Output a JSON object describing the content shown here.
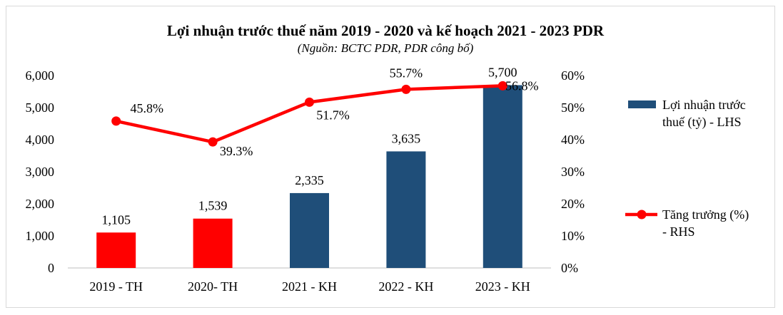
{
  "chart_data": {
    "type": "bar",
    "title": "Lợi nhuận trước thuế năm 2019 - 2020 và kế hoạch 2021 - 2023 PDR",
    "subtitle": "(Nguồn: BCTC PDR, PDR công bố)",
    "categories": [
      "2019 - TH",
      "2020- TH",
      "2021 - KH",
      "2022 - KH",
      "2023 - KH"
    ],
    "series": [
      {
        "name": "Lợi nhuận trước thuế (tỷ) - LHS",
        "type": "bar",
        "axis": "left",
        "values": [
          1105,
          1539,
          2335,
          3635,
          5700
        ],
        "value_labels": [
          "1,105",
          "1,539",
          "2,335",
          "3,635",
          "5,700"
        ],
        "bar_colors": [
          "#ff0000",
          "#ff0000",
          "#1f4e79",
          "#1f4e79",
          "#1f4e79"
        ]
      },
      {
        "name": "Tăng trưởng (%) - RHS",
        "type": "line",
        "axis": "right",
        "values": [
          45.8,
          39.3,
          51.7,
          55.7,
          56.8
        ],
        "value_labels": [
          "45.8%",
          "39.3%",
          "51.7%",
          "55.7%",
          "56.8%"
        ],
        "color": "#ff0000"
      }
    ],
    "left_axis": {
      "ylim": [
        0,
        6000
      ],
      "ticks": [
        "0",
        "1,000",
        "2,000",
        "3,000",
        "4,000",
        "5,000",
        "6,000"
      ]
    },
    "right_axis": {
      "ylim": [
        0,
        60
      ],
      "ticks": [
        "0%",
        "10%",
        "20%",
        "30%",
        "40%",
        "50%",
        "60%"
      ]
    },
    "legend": {
      "position": "right",
      "items": [
        {
          "line1": "Lợi nhuận trước",
          "line2": "thuế (tỷ) - LHS",
          "color": "#1f4e79",
          "kind": "bar"
        },
        {
          "line1": "Tăng trưởng (%)",
          "line2": "- RHS",
          "color": "#ff0000",
          "kind": "line"
        }
      ]
    },
    "grid": false
  }
}
